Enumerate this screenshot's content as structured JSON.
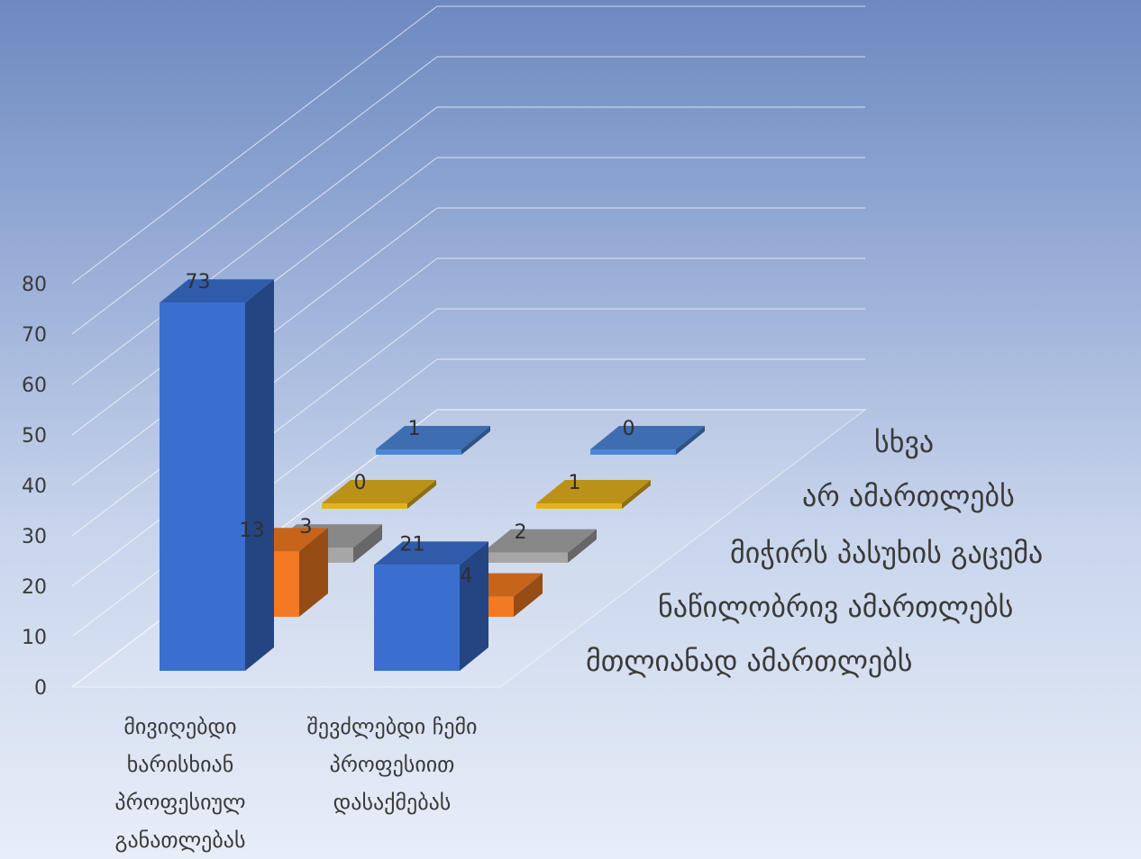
{
  "chart_data": {
    "type": "bar",
    "title": "",
    "xlabel": "",
    "ylabel": "",
    "ylim": [
      0,
      80
    ],
    "yticks": [
      0,
      10,
      20,
      30,
      40,
      50,
      60,
      70,
      80
    ],
    "categories": [
      [
        "მივიღებდი",
        "ხარისხიან",
        "პროფესიულ",
        "განათლებას"
      ],
      [
        "შევძლებდი ჩემი",
        "პროფესიით",
        "დასაქმებას"
      ]
    ],
    "series": [
      {
        "name": "მთლიანად ამართლებს",
        "color": "#3a6fd0",
        "values": [
          73,
          21
        ]
      },
      {
        "name": "ნაწილობრივ ამართლებს",
        "color": "#f27a22",
        "values": [
          13,
          4
        ]
      },
      {
        "name": "მიჭირს პასუხის გაცემა",
        "color": "#a6a6a6",
        "values": [
          3,
          2
        ]
      },
      {
        "name": "არ ამართლებს",
        "color": "#e3b21c",
        "values": [
          0,
          1
        ]
      },
      {
        "name": "სხვა",
        "color": "#4c86d8",
        "values": [
          1,
          0
        ]
      }
    ],
    "grid": true,
    "legend": "none"
  }
}
